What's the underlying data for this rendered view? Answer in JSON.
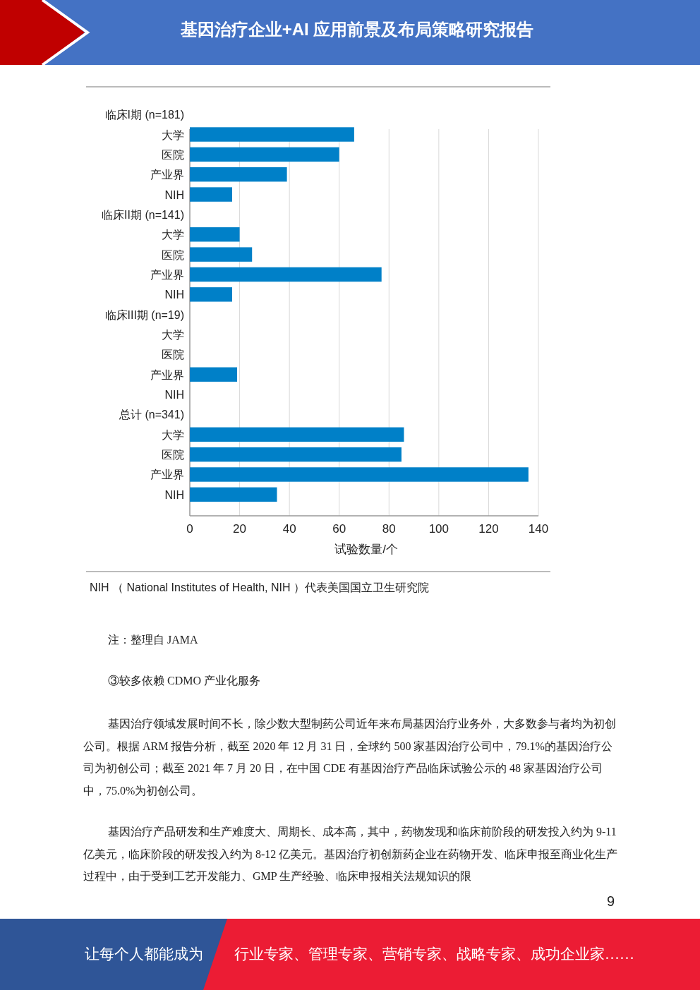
{
  "chart_data": {
    "type": "bar",
    "orientation": "horizontal",
    "title": "基因治疗企业+AI 应用前景及布局策略研究报告",
    "xlabel": "试验数量/个",
    "categories": [
      "临床I期 (n=181)",
      "大学",
      "医院",
      "产业界",
      "NIH",
      "临床II期 (n=141)",
      "大学",
      "医院",
      "产业界",
      "NIH",
      "临床III期 (n=19)",
      "大学",
      "医院",
      "产业界",
      "NIH",
      "总计 (n=341)",
      "大学",
      "医院",
      "产业界",
      "NIH"
    ],
    "values": [
      null,
      66,
      60,
      39,
      17,
      null,
      20,
      25,
      77,
      17,
      null,
      0,
      0,
      19,
      0,
      null,
      86,
      85,
      136,
      35
    ],
    "color": "#0080c8",
    "xlim": [
      0,
      140
    ],
    "xticks": [
      0,
      20,
      40,
      60,
      80,
      100,
      120,
      140
    ],
    "grid": "x",
    "annotations": [
      "NIH （ National Institutes of Health, NIH ）代表美国国立卫生研究院",
      "注：整理自 JAMA",
      "③较多依赖 CDMO 产业化服务",
      "基因治疗领域发展时间不长，除少数大型制药公司近年来布局基因治疗业务外，大多数参与者均为初创公司。根据 ARM 报告分析，截至 2020 年 12 月 31 日，全球约 500 家基因治疗公司中，79.1%的基因治疗公司为初创公司；截至 2021 年 7 月 20 日，在中国 CDE 有基因治疗产品临床试验公示的 48 家基因治疗公司中，75.0%为初创公司。",
      "基因治疗产品研发和生产难度大、周期长、成本高，其中，药物发现和临床前阶段的研发投入约为 9-11 亿美元，临床阶段的研发投入约为 8-12 亿美元。基因治疗初创新药企业在药物开发、临床申报至商业化生产过程中，由于受到工艺开发能力、GMP 生产经验、临床申报相关法规知识的限",
      "9",
      "让每个人都能成为",
      "行业专家、管理专家、营销专家、战略专家、成功企业家……"
    ]
  }
}
